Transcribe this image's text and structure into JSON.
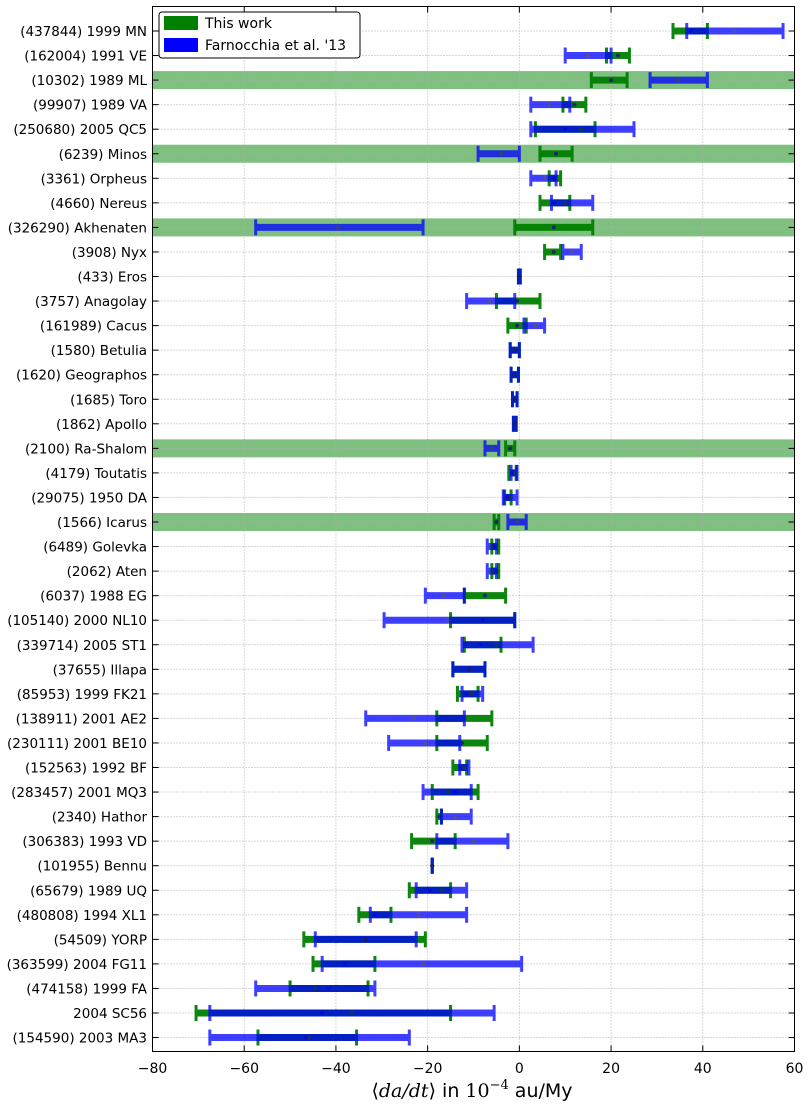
{
  "chart_data": {
    "type": "errorbar",
    "xlim": [
      -80,
      60
    ],
    "xticks": [
      -80,
      -60,
      -40,
      -20,
      0,
      20,
      40,
      60
    ],
    "xtick_labels": [
      "−80",
      "−60",
      "−40",
      "−20",
      "0",
      "20",
      "40",
      "60"
    ],
    "grid": true,
    "xlabel": {
      "open": "⟨",
      "math": "da/dt",
      "close": "⟩",
      "in": " in ",
      "unit_base": "10",
      "unit_exp": "−4",
      "unit_rest": " au/My"
    },
    "legend": {
      "position": "top-left",
      "entries": [
        {
          "label": "This work",
          "color": "#008000"
        },
        {
          "label": "Farnocchia et al. '13",
          "color": "#0000ff"
        }
      ]
    },
    "colors": {
      "this_work": "#008000",
      "farnocchia": "#0000ff",
      "highlight": "#7fbf7f",
      "grid": "#b0b0b0"
    },
    "categories": [
      "(437844) 1999 MN",
      "(162004) 1991 VE",
      "(10302) 1989 ML",
      "(99907) 1989 VA",
      "(250680) 2005 QC5",
      "(6239) Minos",
      "(3361) Orpheus",
      "(4660) Nereus",
      "(326290) Akhenaten",
      "(3908) Nyx",
      "(433) Eros",
      "(3757) Anagolay",
      "(161989) Cacus",
      "(1580) Betulia",
      "(1620) Geographos",
      "(1685) Toro",
      "(1862) Apollo",
      "(2100) Ra-Shalom",
      "(4179) Toutatis",
      "(29075) 1950 DA",
      "(1566) Icarus",
      "(6489) Golevka",
      "(2062) Aten",
      "(6037) 1988 EG",
      "(105140) 2000 NL10",
      "(339714) 2005 ST1",
      "(37655) Illapa",
      "(85953) 1999 FK21",
      "(138911) 2001 AE2",
      "(230111) 2001 BE10",
      "(152563) 1992 BF",
      "(283457) 2001 MQ3",
      "(2340) Hathor",
      "(306383) 1993 VD",
      "(101955) Bennu",
      "(65679) 1989 UQ",
      "(480808) 1994 XL1",
      "(54509) YORP",
      "(363599) 2004 FG11",
      "(474158) 1999 FA",
      "2004 SC56",
      "(154590) 2003 MA3"
    ],
    "highlighted": [
      "(10302) 1989 ML",
      "(6239) Minos",
      "(326290) Akhenaten",
      "(2100) Ra-Shalom",
      "(1566) Icarus"
    ],
    "series": [
      {
        "name": "This work",
        "color": "#008000",
        "values": [
          [
            33.5,
            37.5,
            41.0
          ],
          [
            19.0,
            21.5,
            24.0
          ],
          [
            15.7,
            20.0,
            23.5
          ],
          [
            9.5,
            12.0,
            14.5
          ],
          [
            3.5,
            10.0,
            16.5
          ],
          [
            4.5,
            8.0,
            11.5
          ],
          [
            6.5,
            7.5,
            9.0
          ],
          [
            4.5,
            7.5,
            11.0
          ],
          [
            -1.0,
            7.5,
            16.0
          ],
          [
            5.5,
            7.5,
            9.0
          ],
          [
            -0.2,
            0.0,
            0.2
          ],
          [
            -5.0,
            -0.5,
            4.5
          ],
          [
            -2.5,
            -0.5,
            1.5
          ],
          [
            -2.0,
            -1.0,
            0.0
          ],
          [
            -1.8,
            -1.0,
            -0.2
          ],
          [
            -1.5,
            -1.0,
            -0.5
          ],
          [
            -1.3,
            -1.0,
            -0.7
          ],
          [
            -3.0,
            -2.0,
            -1.0
          ],
          [
            -2.3,
            -1.5,
            -0.7
          ],
          [
            -3.2,
            -2.5,
            -1.8
          ],
          [
            -5.5,
            -5.0,
            -4.5
          ],
          [
            -6.0,
            -5.5,
            -4.5
          ],
          [
            -6.0,
            -5.0,
            -4.5
          ],
          [
            -12.0,
            -7.5,
            -3.0
          ],
          [
            -15.0,
            -8.0,
            -1.0
          ],
          [
            -12.0,
            -8.5,
            -4.0
          ],
          [
            -14.5,
            -11.0,
            -7.5
          ],
          [
            -13.5,
            -11.5,
            -9.0
          ],
          [
            -18.0,
            -12.0,
            -6.0
          ],
          [
            -18.0,
            -12.5,
            -7.0
          ],
          [
            -14.5,
            -13.0,
            -11.5
          ],
          [
            -19.0,
            -14.0,
            -9.0
          ],
          [
            -18.0,
            -17.5,
            -17.0
          ],
          [
            -23.5,
            -19.0,
            -14.0
          ],
          [
            -19.0,
            -19.0,
            -19.0
          ],
          [
            -24.0,
            -19.5,
            -15.0
          ],
          [
            -35.0,
            -31.5,
            -28.0
          ],
          [
            -47.0,
            -33.5,
            -20.5
          ],
          [
            -45.0,
            -38.0,
            -31.5
          ],
          [
            -50.0,
            -41.5,
            -33.0
          ],
          [
            -70.5,
            -43.0,
            -15.0
          ],
          [
            -57.0,
            -46.5,
            -35.5
          ]
        ]
      },
      {
        "name": "Farnocchia et al. '13",
        "color": "#0000ff",
        "values": [
          [
            36.5,
            47.0,
            57.5
          ],
          [
            10.0,
            15.0,
            20.0
          ],
          [
            28.5,
            34.5,
            41.0
          ],
          [
            2.5,
            6.5,
            11.0
          ],
          [
            2.5,
            13.5,
            25.0
          ],
          [
            -9.0,
            -4.0,
            0.0
          ],
          [
            2.5,
            5.5,
            8.0
          ],
          [
            7.0,
            10.0,
            16.0
          ],
          [
            -57.5,
            -39.5,
            -21.0
          ],
          [
            9.5,
            11.5,
            13.5
          ],
          [
            -0.2,
            0.0,
            0.2
          ],
          [
            -11.5,
            -6.5,
            -1.0
          ],
          [
            1.0,
            3.5,
            5.5
          ],
          [
            -2.0,
            -1.0,
            0.0
          ],
          [
            -1.8,
            -1.0,
            -0.2
          ],
          [
            -1.5,
            -1.0,
            -0.5
          ],
          [
            -1.3,
            -1.0,
            -0.7
          ],
          [
            -7.5,
            -6.0,
            -4.5
          ],
          [
            -1.8,
            -1.0,
            -0.5
          ],
          [
            -3.5,
            -2.0,
            -0.5
          ],
          [
            -2.5,
            -0.5,
            1.5
          ],
          [
            -7.0,
            -6.0,
            -5.0
          ],
          [
            -7.0,
            -6.0,
            -5.0
          ],
          [
            -20.5,
            -16.5,
            -12.0
          ],
          [
            -29.5,
            -15.5,
            -1.0
          ],
          [
            -12.5,
            -5.0,
            3.0
          ],
          [
            -14.5,
            -11.0,
            -7.5
          ],
          [
            -12.5,
            -10.5,
            -8.0
          ],
          [
            -33.5,
            -23.0,
            -12.0
          ],
          [
            -28.5,
            -20.5,
            -13.0
          ],
          [
            -13.0,
            -12.0,
            -11.0
          ],
          [
            -21.0,
            -15.5,
            -10.5
          ],
          [
            -17.0,
            -14.0,
            -10.5
          ],
          [
            -18.0,
            -10.0,
            -2.5
          ],
          [
            -19.0,
            -19.0,
            -19.0
          ],
          [
            -22.5,
            -17.0,
            -11.5
          ],
          [
            -32.5,
            -22.0,
            -11.5
          ],
          [
            -44.5,
            -33.5,
            -22.5
          ],
          [
            -43.0,
            -21.0,
            0.5
          ],
          [
            -57.5,
            -44.5,
            -31.5
          ],
          [
            -67.5,
            -36.5,
            -5.5
          ],
          [
            -67.5,
            -46.0,
            -24.0
          ]
        ]
      }
    ]
  }
}
